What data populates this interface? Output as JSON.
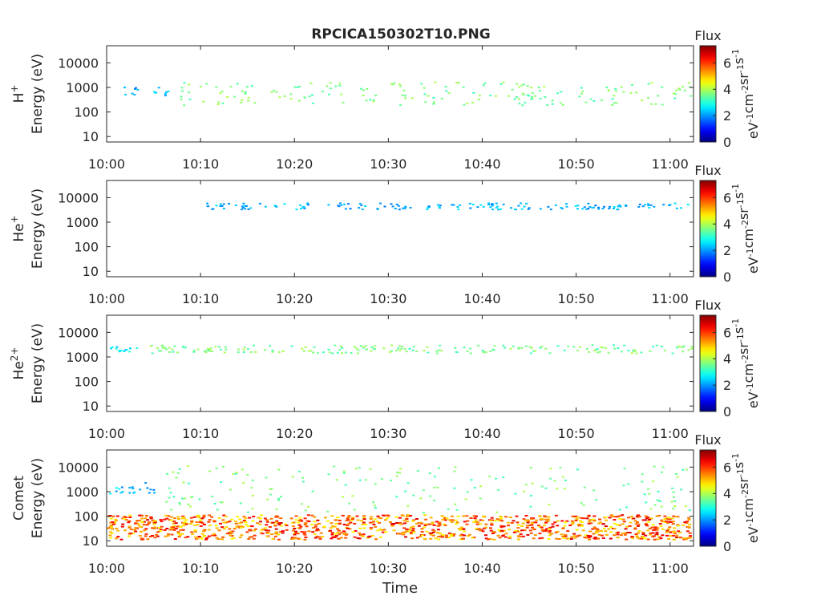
{
  "title": "RPCICA150302T10.PNG",
  "chart_data": [
    {
      "type": "heatmap",
      "ion_label": "H",
      "ion_charge": "+",
      "ylabel": "Energy (eV)",
      "x_ticks": [
        "10:00",
        "10:10",
        "10:20",
        "10:30",
        "10:40",
        "10:50",
        "11:00"
      ],
      "x_range_minutes": [
        0,
        62.5
      ],
      "y_scale": "log",
      "y_ticks": [
        10,
        100,
        1000,
        10000
      ],
      "y_range": [
        6,
        50000
      ],
      "colorbar_title": "Flux",
      "colorbar_ticks": [
        0,
        2,
        4,
        6
      ],
      "colorbar_range": [
        0,
        7.3
      ],
      "colorbar_label": "eV-1cm-2sr-1s-1",
      "features": [
        {
          "t_start": 1.5,
          "t_end": 3.2,
          "e_min": 450,
          "e_max": 1200,
          "flux": 2.1
        },
        {
          "t_start": 4.5,
          "t_end": 6.5,
          "e_min": 400,
          "e_max": 1500,
          "flux": 2.3
        },
        {
          "t_start": 7.5,
          "t_end": 62.5,
          "e_min": 200,
          "e_max": 1800,
          "flux": 3.6
        }
      ]
    },
    {
      "type": "heatmap",
      "ion_label": "He",
      "ion_charge": "+",
      "ylabel": "Energy (eV)",
      "x_ticks": [
        "10:00",
        "10:10",
        "10:20",
        "10:30",
        "10:40",
        "10:50",
        "11:00"
      ],
      "x_range_minutes": [
        0,
        62.5
      ],
      "y_scale": "log",
      "y_ticks": [
        10,
        100,
        1000,
        10000
      ],
      "y_range": [
        6,
        50000
      ],
      "colorbar_title": "Flux",
      "colorbar_ticks": [
        0,
        2,
        4,
        6
      ],
      "colorbar_range": [
        0,
        7.3
      ],
      "colorbar_label": "eV-1cm-2sr-1s-1",
      "features": [
        {
          "t_start": 10.5,
          "t_end": 62,
          "e_min": 3500,
          "e_max": 6500,
          "flux": 2.2
        }
      ]
    },
    {
      "type": "heatmap",
      "ion_label": "He",
      "ion_charge": "2+",
      "ylabel": "Energy (eV)",
      "x_ticks": [
        "10:00",
        "10:10",
        "10:20",
        "10:30",
        "10:40",
        "10:50",
        "11:00"
      ],
      "x_range_minutes": [
        0,
        62.5
      ],
      "y_scale": "log",
      "y_ticks": [
        10,
        100,
        1000,
        10000
      ],
      "y_range": [
        6,
        50000
      ],
      "colorbar_title": "Flux",
      "colorbar_ticks": [
        0,
        2,
        4,
        6
      ],
      "colorbar_range": [
        0,
        7.3
      ],
      "colorbar_label": "eV-1cm-2sr-1s-1",
      "features": [
        {
          "t_start": 0,
          "t_end": 3.2,
          "e_min": 1700,
          "e_max": 2800,
          "flux": 2.6
        },
        {
          "t_start": 4.5,
          "t_end": 62.5,
          "e_min": 1500,
          "e_max": 3300,
          "flux": 3.6
        }
      ]
    },
    {
      "type": "heatmap",
      "ion_label": "Comet",
      "ion_charge": "",
      "ylabel": "Energy (eV)",
      "xlabel": "Time",
      "x_ticks": [
        "10:00",
        "10:10",
        "10:20",
        "10:30",
        "10:40",
        "10:50",
        "11:00"
      ],
      "x_range_minutes": [
        0,
        62.5
      ],
      "y_scale": "log",
      "y_ticks": [
        10,
        100,
        1000,
        10000
      ],
      "y_range": [
        6,
        50000
      ],
      "colorbar_title": "Flux",
      "colorbar_ticks": [
        0,
        2,
        4,
        6
      ],
      "colorbar_range": [
        0,
        7.3
      ],
      "colorbar_label": "eV-1cm-2sr-1s-1",
      "features": [
        {
          "t_start": 0,
          "t_end": 62,
          "e_min": 12,
          "e_max": 120,
          "flux": 5.6
        },
        {
          "t_start": 0,
          "t_end": 3.5,
          "e_min": 900,
          "e_max": 1700,
          "flux": 2.3
        },
        {
          "t_start": 3.5,
          "t_end": 5,
          "e_min": 900,
          "e_max": 2500,
          "flux": 2.0
        },
        {
          "t_start": 6,
          "t_end": 62.5,
          "e_min": 150,
          "e_max": 12000,
          "flux": 3.6
        }
      ]
    }
  ]
}
